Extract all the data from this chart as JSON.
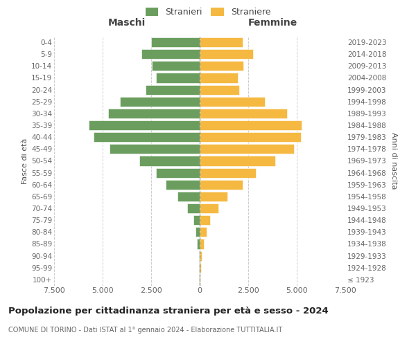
{
  "age_groups": [
    "100+",
    "95-99",
    "90-94",
    "85-89",
    "80-84",
    "75-79",
    "70-74",
    "65-69",
    "60-64",
    "55-59",
    "50-54",
    "45-49",
    "40-44",
    "35-39",
    "30-34",
    "25-29",
    "20-24",
    "15-19",
    "10-14",
    "5-9",
    "0-4"
  ],
  "birth_years": [
    "≤ 1923",
    "1924-1928",
    "1929-1933",
    "1934-1938",
    "1939-1943",
    "1944-1948",
    "1949-1953",
    "1954-1958",
    "1959-1963",
    "1964-1968",
    "1969-1973",
    "1974-1978",
    "1979-1983",
    "1984-1988",
    "1989-1993",
    "1994-1998",
    "1999-2003",
    "2004-2008",
    "2009-2013",
    "2014-2018",
    "2019-2023"
  ],
  "males": [
    25,
    25,
    50,
    130,
    200,
    320,
    640,
    1150,
    1750,
    2250,
    3100,
    4650,
    5450,
    5700,
    4700,
    4100,
    2800,
    2250,
    2450,
    3000,
    2500
  ],
  "females": [
    50,
    60,
    110,
    210,
    340,
    530,
    950,
    1420,
    2200,
    2880,
    3900,
    4850,
    5200,
    5250,
    4500,
    3350,
    2050,
    1950,
    2250,
    2750,
    2200
  ],
  "male_color": "#6b9e5e",
  "female_color": "#f5b942",
  "background_color": "#ffffff",
  "grid_color": "#cccccc",
  "title": "Popolazione per cittadinanza straniera per età e sesso - 2024",
  "subtitle": "COMUNE DI TORINO - Dati ISTAT al 1° gennaio 2024 - Elaborazione TUTTITALIA.IT",
  "header_left": "Maschi",
  "header_right": "Femmine",
  "ylabel_left": "Fasce di età",
  "ylabel_right": "Anni di nascita",
  "legend_males": "Stranieri",
  "legend_females": "Straniere",
  "xlim": 7500,
  "xtick_labels": [
    "7.500",
    "5.000",
    "2.500",
    "0",
    "2.500",
    "5.000",
    "7.500"
  ]
}
